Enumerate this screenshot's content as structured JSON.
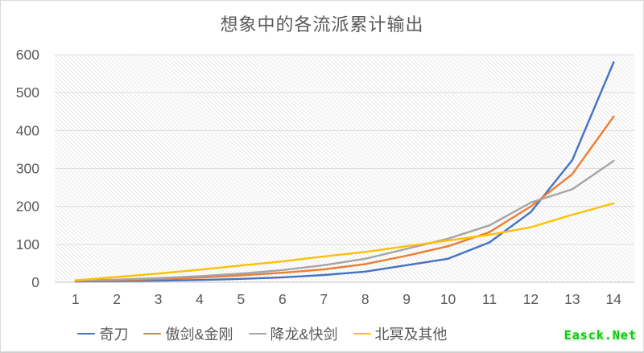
{
  "page": {
    "watermark": "Easck.Net"
  },
  "chart_data": {
    "type": "line",
    "title": "想象中的各流派累计输出",
    "xlabel": "",
    "ylabel": "",
    "categories": [
      1,
      2,
      3,
      4,
      5,
      6,
      7,
      8,
      9,
      10,
      11,
      12,
      13,
      14
    ],
    "series": [
      {
        "name": "奇刀",
        "color": "#4472C4",
        "values": [
          2,
          3,
          4,
          6,
          9,
          13,
          19,
          28,
          45,
          62,
          105,
          185,
          322,
          580
        ]
      },
      {
        "name": "傲剑&金刚",
        "color": "#ED7D31",
        "values": [
          3,
          5,
          8,
          12,
          18,
          25,
          34,
          48,
          70,
          95,
          132,
          200,
          285,
          437
        ]
      },
      {
        "name": "降龙&快剑",
        "color": "#A5A5A5",
        "values": [
          4,
          7,
          11,
          16,
          23,
          32,
          45,
          62,
          88,
          115,
          150,
          210,
          245,
          320
        ]
      },
      {
        "name": "北冥及其他",
        "color": "#FFC000",
        "values": [
          5,
          14,
          23,
          33,
          44,
          55,
          68,
          80,
          95,
          110,
          125,
          145,
          178,
          208
        ]
      }
    ],
    "y_axis": {
      "min": 0,
      "max": 600,
      "step": 100,
      "tick_labels": [
        "0",
        "100",
        "200",
        "300",
        "400",
        "500",
        "600"
      ]
    },
    "x_axis": {
      "tick_labels": [
        "1",
        "2",
        "3",
        "4",
        "5",
        "6",
        "7",
        "8",
        "9",
        "10",
        "11",
        "12",
        "13",
        "14"
      ]
    },
    "grid": true,
    "legend_position": "bottom",
    "plot_background": "diagonal-hatch"
  },
  "colors": {
    "label_text": "#595959",
    "gridline": "#dcdcdc",
    "axis_line": "#c6c6c6",
    "hatch_line": "#e9e9e9",
    "border": "#d9d9d9",
    "watermark_green": "#17c517"
  }
}
